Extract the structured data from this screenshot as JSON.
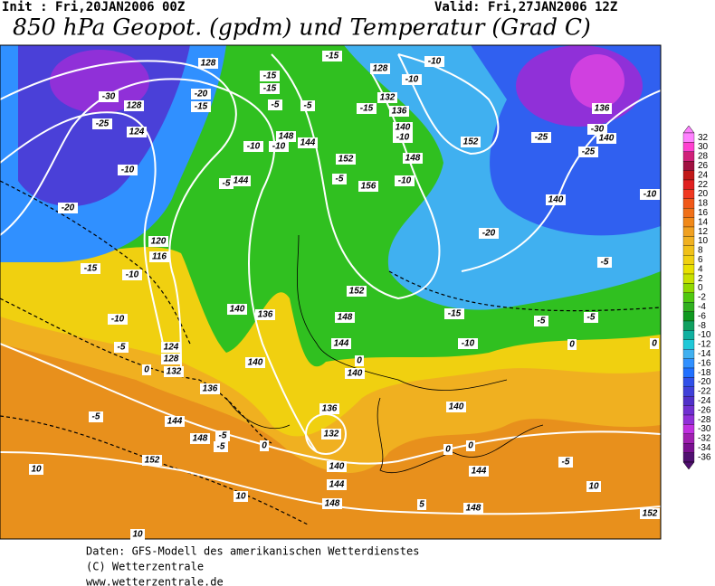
{
  "header": {
    "init": "Init : Fri,20JAN2006 00Z",
    "valid": "Valid: Fri,27JAN2006 12Z",
    "title": "850 hPa Geopot. (gpdm) und Temperatur (Grad C)"
  },
  "legend": {
    "values": [
      32,
      30,
      28,
      26,
      24,
      22,
      20,
      18,
      16,
      14,
      12,
      10,
      8,
      6,
      4,
      2,
      0,
      -2,
      -4,
      -6,
      -8,
      -10,
      -12,
      -14,
      -16,
      -18,
      -20,
      -22,
      -24,
      -26,
      -28,
      -30,
      -32,
      -34,
      -36
    ],
    "colors": [
      "#ff80ff",
      "#ff40d0",
      "#d0207a",
      "#a01040",
      "#c01818",
      "#e02020",
      "#f03820",
      "#f05818",
      "#f07018",
      "#f08818",
      "#f0a020",
      "#f0b020",
      "#f0c018",
      "#f0d010",
      "#e8e000",
      "#c8e000",
      "#90d800",
      "#50c810",
      "#30b020",
      "#109820",
      "#10a060",
      "#10b0a0",
      "#20c8d8",
      "#40b0f0",
      "#3090ff",
      "#2070ff",
      "#3050e8",
      "#4040d8",
      "#5030c8",
      "#7030d0",
      "#9030d8",
      "#c030e0",
      "#a020b0",
      "#7a1090",
      "#501070"
    ]
  },
  "map": {
    "labels": [
      "128",
      "-15",
      "128",
      "-10",
      "-30",
      "-20",
      "-15",
      "128",
      "-15",
      "-15",
      "-5",
      "-10",
      "132",
      "-15",
      "136",
      "-5",
      "-25",
      "124",
      "140",
      "-10",
      "148",
      "144",
      "-10",
      "-10",
      "152",
      "-25",
      "136",
      "-30",
      "140",
      "-25",
      "152",
      "148",
      "-5",
      "156",
      "-10",
      "-10",
      "-5",
      "144",
      "-20",
      "-10",
      "140",
      "-20",
      "120",
      "116",
      "-15",
      "-10",
      "-5",
      "152",
      "140",
      "136",
      "148",
      "-15",
      "-5",
      "-5",
      "-10",
      "-5",
      "124",
      "128",
      "132",
      "140",
      "144",
      "-10",
      "0",
      "136",
      "140",
      "0",
      "0",
      "0",
      "-5",
      "144",
      "136",
      "132",
      "148",
      "140",
      "-5",
      "-5",
      "0",
      "152",
      "10",
      "140",
      "0",
      "0",
      "144",
      "144",
      "10",
      "-5",
      "10",
      "148",
      "148",
      "5",
      "10",
      "152"
    ]
  },
  "footer": {
    "lines": [
      "Daten: GFS-Modell des amerikanischen Wetterdienstes",
      "(C) Wetterzentrale",
      "www.wetterzentrale.de"
    ]
  }
}
